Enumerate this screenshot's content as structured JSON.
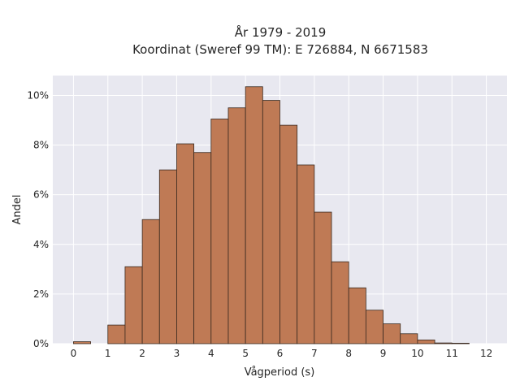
{
  "chart_data": {
    "type": "bar",
    "title": [
      "År 1979 - 2019",
      "Koordinat (Sweref 99 TM): E 726884, N 6671583"
    ],
    "xlabel": "Vågperiod (s)",
    "ylabel": "Andel",
    "x_ticks": [
      0,
      1,
      2,
      3,
      4,
      5,
      6,
      7,
      8,
      9,
      10,
      11,
      12
    ],
    "y_ticks": [
      0,
      2,
      4,
      6,
      8,
      10
    ],
    "y_tick_labels": [
      "0%",
      "2%",
      "4%",
      "6%",
      "8%",
      "10%"
    ],
    "xlim": [
      -0.6,
      12.6
    ],
    "ylim": [
      0,
      10.8
    ],
    "grid": true,
    "bin_width": 0.5,
    "bins": [
      {
        "x0": 0.0,
        "x1": 0.5,
        "value": 0.08
      },
      {
        "x0": 1.0,
        "x1": 1.5,
        "value": 0.75
      },
      {
        "x0": 1.5,
        "x1": 2.0,
        "value": 3.1
      },
      {
        "x0": 2.0,
        "x1": 2.5,
        "value": 5.0
      },
      {
        "x0": 2.5,
        "x1": 3.0,
        "value": 7.0
      },
      {
        "x0": 3.0,
        "x1": 3.5,
        "value": 8.05
      },
      {
        "x0": 3.5,
        "x1": 4.0,
        "value": 7.7
      },
      {
        "x0": 4.0,
        "x1": 4.5,
        "value": 9.05
      },
      {
        "x0": 4.5,
        "x1": 5.0,
        "value": 9.5
      },
      {
        "x0": 5.0,
        "x1": 5.5,
        "value": 10.35
      },
      {
        "x0": 5.5,
        "x1": 6.0,
        "value": 9.8
      },
      {
        "x0": 6.0,
        "x1": 6.5,
        "value": 8.8
      },
      {
        "x0": 6.5,
        "x1": 7.0,
        "value": 7.2
      },
      {
        "x0": 7.0,
        "x1": 7.5,
        "value": 5.3
      },
      {
        "x0": 7.5,
        "x1": 8.0,
        "value": 3.3
      },
      {
        "x0": 8.0,
        "x1": 8.5,
        "value": 2.25
      },
      {
        "x0": 8.5,
        "x1": 9.0,
        "value": 1.35
      },
      {
        "x0": 9.0,
        "x1": 9.5,
        "value": 0.8
      },
      {
        "x0": 9.5,
        "x1": 10.0,
        "value": 0.4
      },
      {
        "x0": 10.0,
        "x1": 10.5,
        "value": 0.15
      },
      {
        "x0": 10.5,
        "x1": 11.0,
        "value": 0.03
      },
      {
        "x0": 11.0,
        "x1": 11.5,
        "value": 0.02
      }
    ],
    "colors": {
      "bar_fill": "#bf7a55",
      "bar_edge": "#3a2a20",
      "plot_background": "#e8e8f0",
      "grid": "#ffffff"
    }
  }
}
